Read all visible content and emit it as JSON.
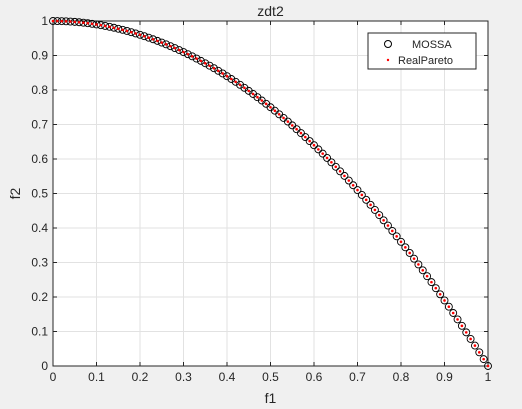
{
  "chart_data": {
    "type": "scatter",
    "title": "zdt2",
    "xlabel": "f1",
    "ylabel": "f2",
    "xlim": [
      0,
      1
    ],
    "ylim": [
      0,
      1
    ],
    "grid": true,
    "legend_position": "top-right",
    "xticks": [
      "0",
      "0.1",
      "0.2",
      "0.3",
      "0.4",
      "0.5",
      "0.6",
      "0.7",
      "0.8",
      "0.9",
      "1"
    ],
    "yticks": [
      "0",
      "0.1",
      "0.2",
      "0.3",
      "0.4",
      "0.5",
      "0.6",
      "0.7",
      "0.8",
      "0.9",
      "1"
    ],
    "function": "f2 = 1 - f1^2",
    "series": [
      {
        "name": "MOSSA",
        "marker": "open-circle",
        "color": "#000000",
        "x": [
          0,
          0.01,
          0.02,
          0.03,
          0.04,
          0.05,
          0.06,
          0.07,
          0.08,
          0.09,
          0.1,
          0.11,
          0.12,
          0.13,
          0.14,
          0.15,
          0.16,
          0.17,
          0.18,
          0.19,
          0.2,
          0.21,
          0.22,
          0.23,
          0.24,
          0.25,
          0.26,
          0.27,
          0.28,
          0.29,
          0.3,
          0.31,
          0.32,
          0.33,
          0.34,
          0.35,
          0.36,
          0.37,
          0.38,
          0.39,
          0.4,
          0.41,
          0.42,
          0.43,
          0.44,
          0.45,
          0.46,
          0.47,
          0.48,
          0.49,
          0.5,
          0.51,
          0.52,
          0.53,
          0.54,
          0.55,
          0.56,
          0.57,
          0.58,
          0.59,
          0.6,
          0.61,
          0.62,
          0.63,
          0.64,
          0.65,
          0.66,
          0.67,
          0.68,
          0.69,
          0.7,
          0.71,
          0.72,
          0.73,
          0.74,
          0.75,
          0.76,
          0.77,
          0.78,
          0.79,
          0.8,
          0.81,
          0.82,
          0.83,
          0.84,
          0.85,
          0.86,
          0.87,
          0.88,
          0.89,
          0.9,
          0.91,
          0.92,
          0.93,
          0.94,
          0.95,
          0.96,
          0.97,
          0.98,
          0.99,
          1
        ],
        "y": [
          1,
          0.9999,
          0.9996,
          0.9991,
          0.9984,
          0.9975,
          0.9964,
          0.9951,
          0.9936,
          0.9919,
          0.99,
          0.9879,
          0.9856,
          0.9831,
          0.9804,
          0.9775,
          0.9744,
          0.9711,
          0.9676,
          0.9639,
          0.96,
          0.9559,
          0.9516,
          0.9471,
          0.9424,
          0.9375,
          0.9324,
          0.9271,
          0.9216,
          0.9159,
          0.91,
          0.9039,
          0.8976,
          0.8911,
          0.8844,
          0.8775,
          0.8704,
          0.8631,
          0.8556,
          0.8479,
          0.84,
          0.8319,
          0.8236,
          0.8151,
          0.8064,
          0.7975,
          0.7884,
          0.7791,
          0.7696,
          0.7599,
          0.75,
          0.7399,
          0.7296,
          0.7191,
          0.7084,
          0.6975,
          0.6864,
          0.6751,
          0.6636,
          0.6519,
          0.64,
          0.6279,
          0.6156,
          0.6031,
          0.5904,
          0.5775,
          0.5644,
          0.5511,
          0.5376,
          0.5239,
          0.51,
          0.4959,
          0.4816,
          0.4671,
          0.4524,
          0.4375,
          0.4224,
          0.4071,
          0.3916,
          0.3759,
          0.36,
          0.3439,
          0.3276,
          0.3111,
          0.2944,
          0.2775,
          0.2604,
          0.2431,
          0.2256,
          0.2079,
          0.19,
          0.1719,
          0.1536,
          0.1351,
          0.1164,
          0.0975,
          0.0784,
          0.0591,
          0.0396,
          0.0199,
          0
        ]
      },
      {
        "name": "RealPareto",
        "marker": "dot",
        "color": "#ff0000",
        "x": [
          0,
          0.01,
          0.02,
          0.03,
          0.04,
          0.05,
          0.06,
          0.07,
          0.08,
          0.09,
          0.1,
          0.11,
          0.12,
          0.13,
          0.14,
          0.15,
          0.16,
          0.17,
          0.18,
          0.19,
          0.2,
          0.21,
          0.22,
          0.23,
          0.24,
          0.25,
          0.26,
          0.27,
          0.28,
          0.29,
          0.3,
          0.31,
          0.32,
          0.33,
          0.34,
          0.35,
          0.36,
          0.37,
          0.38,
          0.39,
          0.4,
          0.41,
          0.42,
          0.43,
          0.44,
          0.45,
          0.46,
          0.47,
          0.48,
          0.49,
          0.5,
          0.51,
          0.52,
          0.53,
          0.54,
          0.55,
          0.56,
          0.57,
          0.58,
          0.59,
          0.6,
          0.61,
          0.62,
          0.63,
          0.64,
          0.65,
          0.66,
          0.67,
          0.68,
          0.69,
          0.7,
          0.71,
          0.72,
          0.73,
          0.74,
          0.75,
          0.76,
          0.77,
          0.78,
          0.79,
          0.8,
          0.81,
          0.82,
          0.83,
          0.84,
          0.85,
          0.86,
          0.87,
          0.88,
          0.89,
          0.9,
          0.91,
          0.92,
          0.93,
          0.94,
          0.95,
          0.96,
          0.97,
          0.98,
          0.99,
          1
        ],
        "y": [
          1,
          0.9999,
          0.9996,
          0.9991,
          0.9984,
          0.9975,
          0.9964,
          0.9951,
          0.9936,
          0.9919,
          0.99,
          0.9879,
          0.9856,
          0.9831,
          0.9804,
          0.9775,
          0.9744,
          0.9711,
          0.9676,
          0.9639,
          0.96,
          0.9559,
          0.9516,
          0.9471,
          0.9424,
          0.9375,
          0.9324,
          0.9271,
          0.9216,
          0.9159,
          0.91,
          0.9039,
          0.8976,
          0.8911,
          0.8844,
          0.8775,
          0.8704,
          0.8631,
          0.8556,
          0.8479,
          0.84,
          0.8319,
          0.8236,
          0.8151,
          0.8064,
          0.7975,
          0.7884,
          0.7791,
          0.7696,
          0.7599,
          0.75,
          0.7399,
          0.7296,
          0.7191,
          0.7084,
          0.6975,
          0.6864,
          0.6751,
          0.6636,
          0.6519,
          0.64,
          0.6279,
          0.6156,
          0.6031,
          0.5904,
          0.5775,
          0.5644,
          0.5511,
          0.5376,
          0.5239,
          0.51,
          0.4959,
          0.4816,
          0.4671,
          0.4524,
          0.4375,
          0.4224,
          0.4071,
          0.3916,
          0.3759,
          0.36,
          0.3439,
          0.3276,
          0.3111,
          0.2944,
          0.2775,
          0.2604,
          0.2431,
          0.2256,
          0.2079,
          0.19,
          0.1719,
          0.1536,
          0.1351,
          0.1164,
          0.0975,
          0.0784,
          0.0591,
          0.0396,
          0.0199,
          0
        ]
      }
    ],
    "colors": {
      "figure_background": "#f0f0f0",
      "axes_background": "#ffffff",
      "grid": "#e2e2e2",
      "axis": "#262626"
    }
  }
}
